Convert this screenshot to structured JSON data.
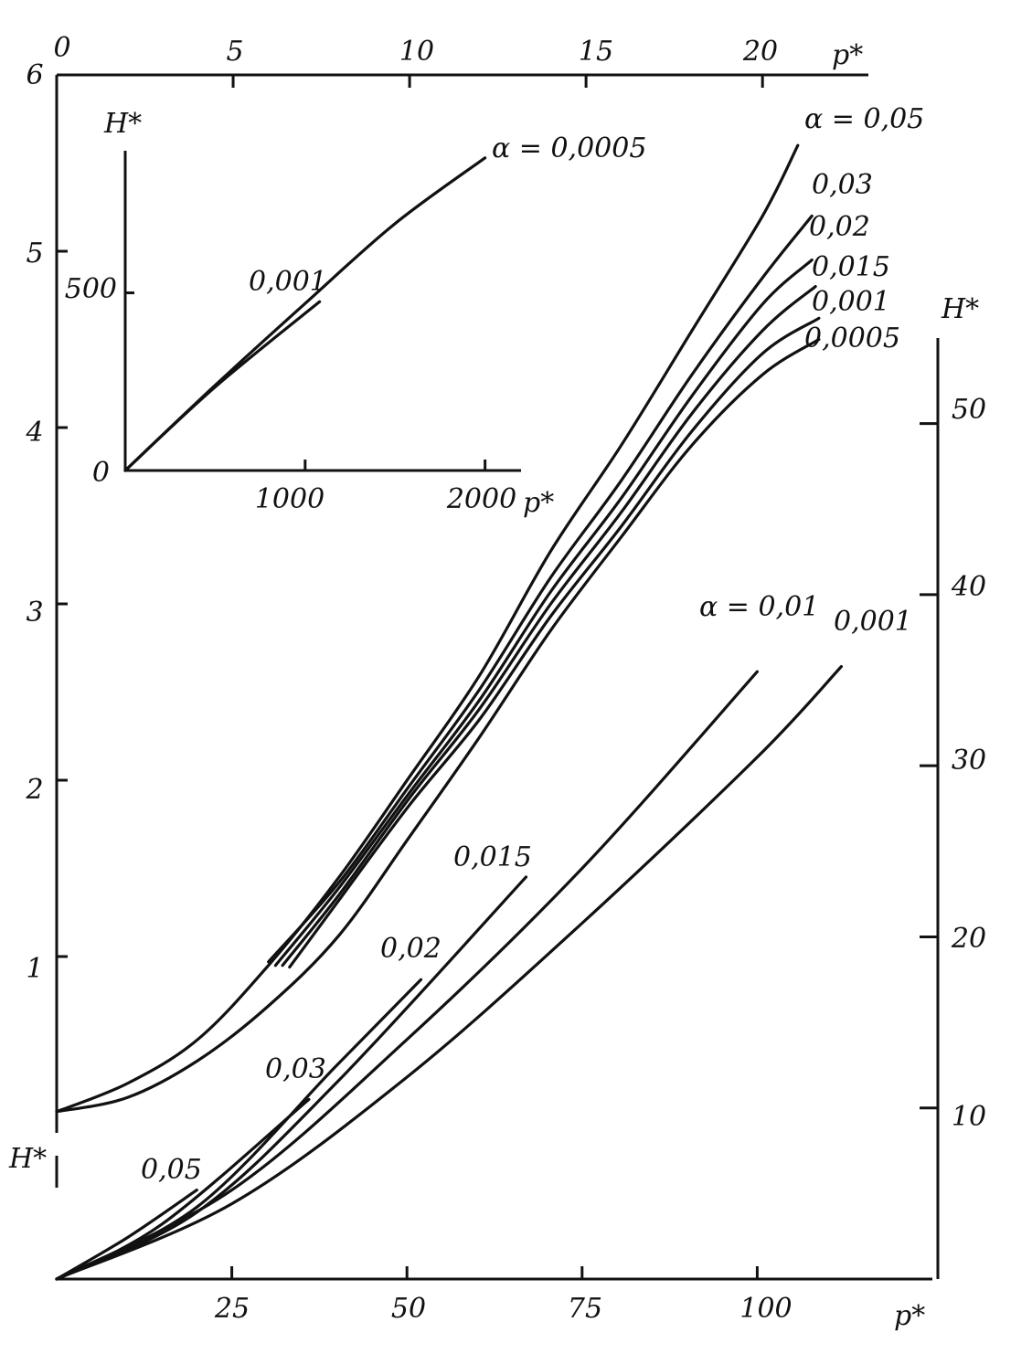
{
  "chart_data": [
    {
      "type": "line",
      "panel": "upper (main)",
      "x_axis_label": "p*",
      "y_axis_label": "",
      "x_ticks": [
        "0",
        "5",
        "10",
        "15",
        "20"
      ],
      "y_ticks": [
        "6",
        "5",
        "4",
        "3",
        "2",
        "1"
      ],
      "xlim": [
        0,
        23
      ],
      "ylim": [
        0,
        6
      ],
      "series": [
        {
          "name": "α = 0,05",
          "label": "α = 0,05",
          "x": [
            0,
            2,
            4,
            6,
            8,
            10,
            12,
            14,
            16,
            18,
            20,
            21
          ],
          "y": [
            0.12,
            0.28,
            0.53,
            0.95,
            1.45,
            2.02,
            2.6,
            3.3,
            3.9,
            4.55,
            5.2,
            5.6
          ]
        },
        {
          "name": "0,03",
          "label": "0,03",
          "x": [
            6,
            8,
            10,
            12,
            14,
            16,
            18,
            20,
            21.4
          ],
          "y": [
            0.97,
            1.42,
            1.97,
            2.52,
            3.15,
            3.7,
            4.3,
            4.85,
            5.2
          ]
        },
        {
          "name": "0,02",
          "label": "0,02",
          "x": [
            6.2,
            8,
            10,
            12,
            14,
            16,
            18,
            20,
            21.4
          ],
          "y": [
            0.95,
            1.39,
            1.93,
            2.46,
            3.07,
            3.6,
            4.18,
            4.7,
            4.95
          ]
        },
        {
          "name": "0,015",
          "label": "0,015",
          "x": [
            6.4,
            8,
            10,
            12,
            14,
            16,
            18,
            20,
            21.5
          ],
          "y": [
            0.95,
            1.35,
            1.9,
            2.41,
            3.0,
            3.52,
            4.08,
            4.55,
            4.8
          ]
        },
        {
          "name": "0,001",
          "label": "0,001",
          "x": [
            6.6,
            8,
            10,
            12,
            14,
            16,
            18,
            20,
            21.6
          ],
          "y": [
            0.94,
            1.32,
            1.86,
            2.35,
            2.93,
            3.44,
            3.98,
            4.42,
            4.62
          ]
        },
        {
          "name": "0,0005",
          "label": "0,0005",
          "x": [
            0,
            2,
            4,
            6,
            8,
            10,
            12,
            14,
            16,
            18,
            20,
            21.6
          ],
          "y": [
            0.12,
            0.2,
            0.41,
            0.72,
            1.12,
            1.68,
            2.25,
            2.85,
            3.38,
            3.9,
            4.3,
            4.5
          ]
        }
      ]
    },
    {
      "type": "line",
      "panel": "inset",
      "x_axis_label": "p*",
      "y_axis_label": "H*",
      "x_ticks": [
        "1000",
        "2000"
      ],
      "y_ticks": [
        "0",
        "500"
      ],
      "xlim": [
        0,
        2200
      ],
      "ylim": [
        0,
        900
      ],
      "series": [
        {
          "name": "α = 0,0005",
          "label": "α = 0,0005",
          "x": [
            0,
            500,
            1000,
            1500,
            2000
          ],
          "y": [
            0,
            240,
            470,
            695,
            880
          ]
        },
        {
          "name": "0,001",
          "label": "0,001",
          "x": [
            0,
            500,
            1080
          ],
          "y": [
            0,
            235,
            475
          ]
        }
      ]
    },
    {
      "type": "line",
      "panel": "lower",
      "x_axis_label": "p*",
      "y_axis_label": "H*",
      "x_ticks": [
        "25",
        "50",
        "75",
        "100"
      ],
      "y_ticks": [
        "50",
        "40",
        "30",
        "20",
        "10"
      ],
      "xlim": [
        0,
        125
      ],
      "ylim": [
        0,
        55
      ],
      "series": [
        {
          "name": "0,05",
          "label": "0,05",
          "x": [
            0,
            10,
            20
          ],
          "y": [
            0,
            2.4,
            5.2
          ]
        },
        {
          "name": "0,03",
          "label": "0,03",
          "x": [
            0,
            15,
            36
          ],
          "y": [
            0,
            3.2,
            10.5
          ]
        },
        {
          "name": "0,02",
          "label": "0,02",
          "x": [
            0,
            20,
            40,
            52
          ],
          "y": [
            0,
            4.2,
            12.5,
            17.5
          ]
        },
        {
          "name": "0,015",
          "label": "0,015",
          "x": [
            0,
            20,
            40,
            67
          ],
          "y": [
            0,
            3.9,
            11.5,
            23.5
          ]
        },
        {
          "name": "α = 0,01",
          "label": "α = 0,01",
          "x": [
            0,
            25,
            50,
            75,
            100
          ],
          "y": [
            0,
            5.2,
            14.0,
            24.0,
            35.5
          ]
        },
        {
          "name": "0,001",
          "label": "0,001",
          "x": [
            0,
            25,
            50,
            75,
            100,
            112
          ],
          "y": [
            0,
            4.4,
            11.8,
            20.8,
            30.5,
            35.8
          ]
        }
      ]
    }
  ]
}
